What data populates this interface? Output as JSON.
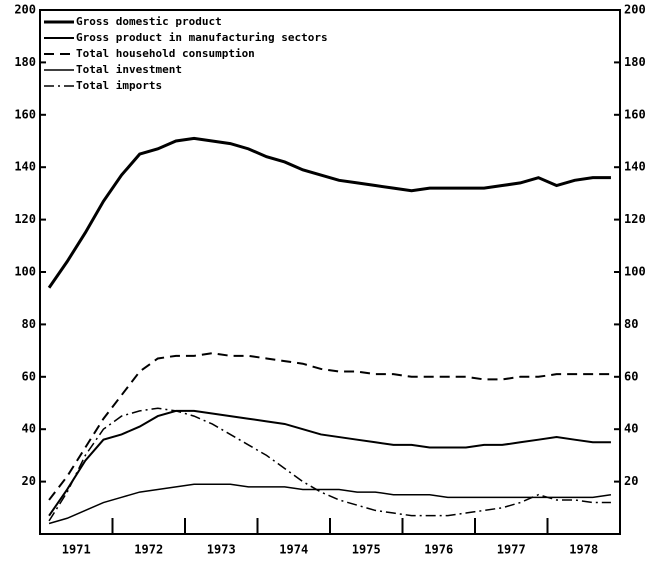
{
  "chart_data": {
    "type": "line",
    "x": [
      1971.125,
      1971.375,
      1971.625,
      1971.875,
      1972.125,
      1972.375,
      1972.625,
      1972.875,
      1973.125,
      1973.375,
      1973.625,
      1973.875,
      1974.125,
      1974.375,
      1974.625,
      1974.875,
      1975.125,
      1975.375,
      1975.625,
      1975.875,
      1976.125,
      1976.375,
      1976.625,
      1976.875,
      1977.125,
      1977.375,
      1977.625,
      1977.875,
      1978.125,
      1978.375,
      1978.625,
      1978.875
    ],
    "categories": [
      "1971",
      "1972",
      "1973",
      "1974",
      "1975",
      "1976",
      "1977",
      "1978"
    ],
    "xlim": [
      1971,
      1979
    ],
    "xticks": [
      1972,
      1973,
      1974,
      1975,
      1976,
      1977,
      1978
    ],
    "ylim": [
      0,
      200
    ],
    "yticks": [
      20,
      40,
      60,
      80,
      100,
      120,
      140,
      160,
      180,
      200
    ],
    "right_axis": true,
    "legend": "upper left",
    "series": [
      {
        "name": "Gross domestic product",
        "color": "#000000",
        "dash": "solid",
        "width": 3,
        "values": [
          94,
          104,
          115,
          127,
          137,
          145,
          147,
          150,
          151,
          150,
          149,
          147,
          144,
          142,
          139,
          137,
          135,
          134,
          133,
          132,
          131,
          132,
          132,
          132,
          132,
          133,
          134,
          136,
          133,
          135,
          136,
          136
        ]
      },
      {
        "name": "Gross product in manufacturing sectors",
        "color": "#000000",
        "dash": "solid",
        "width": 2,
        "values": [
          7,
          17,
          28,
          36,
          38,
          41,
          45,
          47,
          47,
          46,
          45,
          44,
          43,
          42,
          40,
          38,
          37,
          36,
          35,
          34,
          34,
          33,
          33,
          33,
          34,
          34,
          35,
          36,
          37,
          36,
          35,
          35
        ]
      },
      {
        "name": "Total household consumption",
        "color": "#000000",
        "dash": "dashed",
        "width": 2,
        "values": [
          13,
          22,
          33,
          44,
          53,
          62,
          67,
          68,
          68,
          69,
          68,
          68,
          67,
          66,
          65,
          63,
          62,
          62,
          61,
          61,
          60,
          60,
          60,
          60,
          59,
          59,
          60,
          60,
          61,
          61,
          61,
          61
        ]
      },
      {
        "name": "Total investment",
        "color": "#000000",
        "dash": "solid",
        "width": 1.5,
        "values": [
          4,
          6,
          9,
          12,
          14,
          16,
          17,
          18,
          19,
          19,
          19,
          18,
          18,
          18,
          17,
          17,
          17,
          16,
          16,
          15,
          15,
          15,
          14,
          14,
          14,
          14,
          14,
          14,
          14,
          14,
          14,
          15
        ]
      },
      {
        "name": "Total imports",
        "color": "#000000",
        "dash": "dashdot",
        "width": 1.5,
        "values": [
          5,
          16,
          30,
          40,
          45,
          47,
          48,
          47,
          45,
          42,
          38,
          34,
          30,
          25,
          20,
          16,
          13,
          11,
          9,
          8,
          7,
          7,
          7,
          8,
          9,
          10,
          12,
          15,
          13,
          13,
          12,
          12
        ]
      }
    ]
  }
}
